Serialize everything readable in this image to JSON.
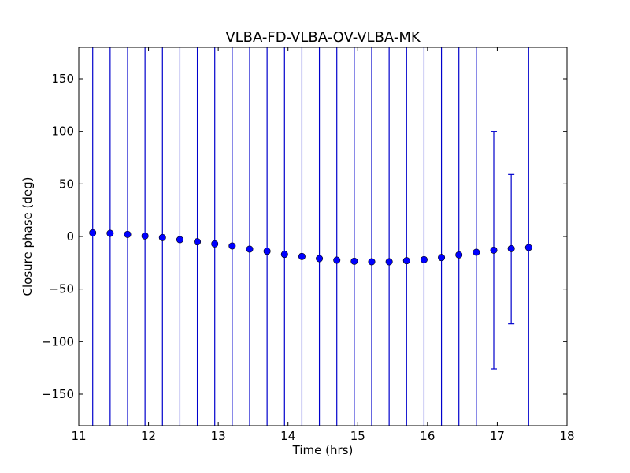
{
  "chart_data": {
    "type": "scatter",
    "title": "VLBA-FD-VLBA-OV-VLBA-MK",
    "xlabel": "Time (hrs)",
    "ylabel": "Closure phase (deg)",
    "xlim": [
      11,
      18
    ],
    "ylim": [
      -180,
      180
    ],
    "xticks": [
      11,
      12,
      13,
      14,
      15,
      16,
      17,
      18
    ],
    "xtick_labels": [
      "11",
      "12",
      "13",
      "14",
      "15",
      "16",
      "17",
      "18"
    ],
    "yticks": [
      150,
      100,
      50,
      0,
      -50,
      -100,
      -150
    ],
    "ytick_labels": [
      "150",
      "100",
      "50",
      "0",
      "−50",
      "−100",
      "−150"
    ],
    "grid": false,
    "marker_color": "#0000ff",
    "errorbar_color": "#0000cc",
    "series": [
      {
        "x": [
          11.2,
          11.45,
          11.7,
          11.95,
          12.2,
          12.45,
          12.7,
          12.95,
          13.2,
          13.45,
          13.7,
          13.95,
          14.2,
          14.45,
          14.7,
          14.95,
          15.2,
          15.45,
          15.7,
          15.95,
          16.2,
          16.45,
          16.7,
          16.95,
          17.2,
          17.45
        ],
        "y": [
          3.5,
          3,
          2,
          0.5,
          -1,
          -3,
          -5,
          -7,
          -9,
          -12,
          -14,
          -17,
          -19,
          -21,
          -22.5,
          -23.5,
          -24,
          -24,
          -23,
          -22,
          -20,
          -17.5,
          -15,
          -13,
          -11.5,
          -10.5
        ],
        "yerr_low": [
          -180,
          -180,
          -180,
          -180,
          -180,
          -180,
          -180,
          -180,
          -180,
          -180,
          -180,
          -180,
          -180,
          -180,
          -180,
          -180,
          -180,
          -180,
          -180,
          -180,
          -180,
          -180,
          -180,
          -126,
          -83,
          -180
        ],
        "yerr_high": [
          180,
          180,
          180,
          180,
          180,
          180,
          180,
          180,
          180,
          180,
          180,
          180,
          180,
          180,
          180,
          180,
          180,
          180,
          180,
          180,
          180,
          180,
          180,
          100,
          59,
          180
        ],
        "yerr_capped": [
          false,
          false,
          false,
          false,
          false,
          false,
          false,
          false,
          false,
          false,
          false,
          false,
          false,
          false,
          false,
          false,
          false,
          false,
          false,
          false,
          false,
          false,
          false,
          true,
          true,
          false
        ]
      }
    ]
  }
}
